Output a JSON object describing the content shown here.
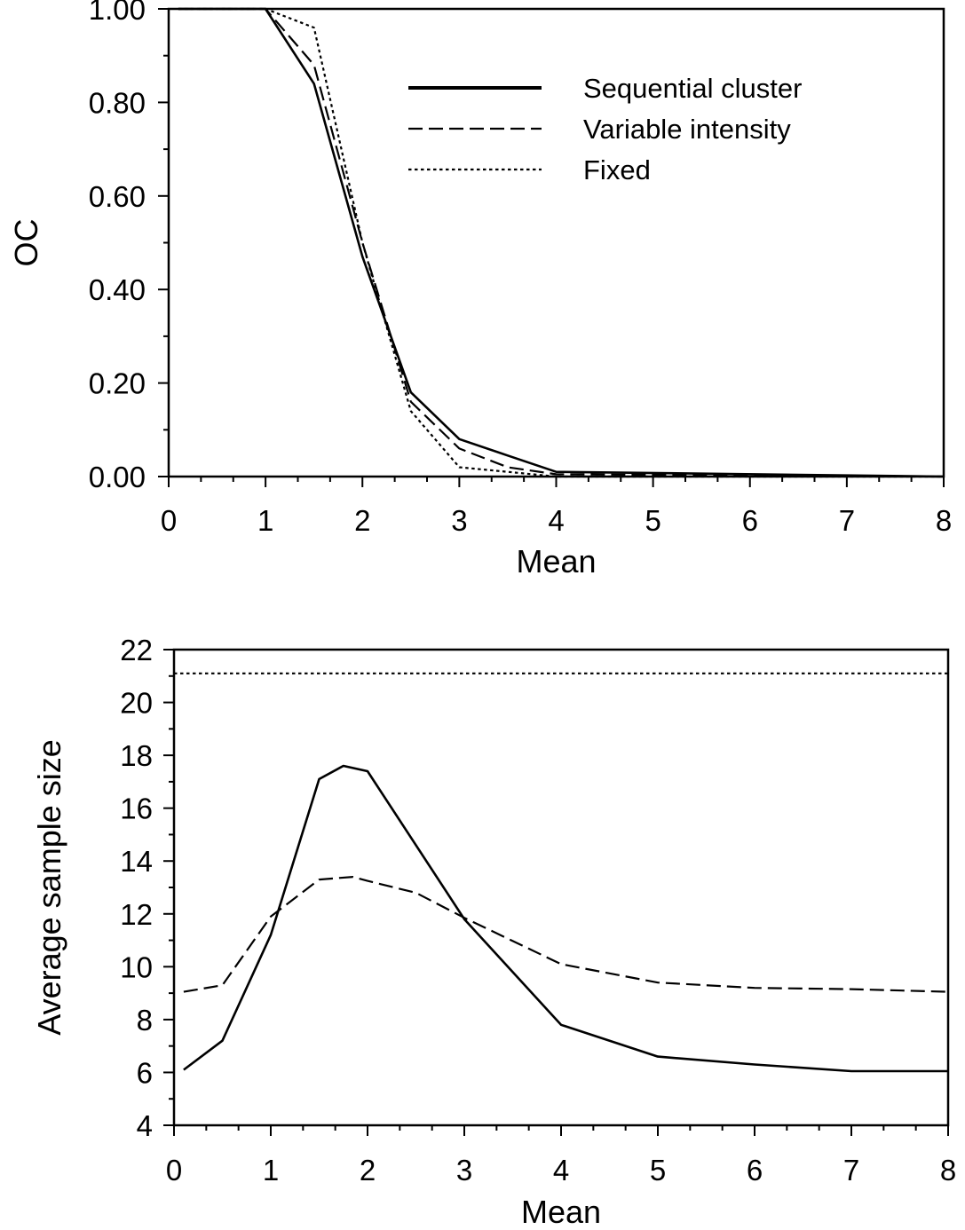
{
  "chart_data": [
    {
      "type": "line",
      "xlabel": "Mean",
      "ylabel": "OC",
      "xlim": [
        0,
        8
      ],
      "ylim": [
        0,
        1
      ],
      "x_ticks": [
        "0",
        "1",
        "2",
        "3",
        "4",
        "5",
        "6",
        "7",
        "8"
      ],
      "y_ticks": [
        "0.00",
        "0.20",
        "0.40",
        "0.60",
        "0.80",
        "1.00"
      ],
      "legend_position": "top-right",
      "series": [
        {
          "name": "Sequential cluster",
          "style": "solid",
          "points": [
            [
              0.1,
              1.0
            ],
            [
              1.0,
              1.0
            ],
            [
              1.5,
              0.84
            ],
            [
              2.0,
              0.47
            ],
            [
              2.5,
              0.18
            ],
            [
              3.0,
              0.08
            ],
            [
              3.5,
              0.045
            ],
            [
              4.0,
              0.01
            ],
            [
              8.0,
              0.0
            ]
          ]
        },
        {
          "name": "Variable intensity",
          "style": "dashed",
          "points": [
            [
              0.1,
              1.0
            ],
            [
              1.0,
              1.0
            ],
            [
              1.5,
              0.88
            ],
            [
              2.0,
              0.5
            ],
            [
              2.5,
              0.16
            ],
            [
              3.0,
              0.06
            ],
            [
              3.5,
              0.02
            ],
            [
              4.0,
              0.005
            ],
            [
              8.0,
              0.0
            ]
          ]
        },
        {
          "name": "Fixed",
          "style": "dotted",
          "points": [
            [
              0.1,
              1.0
            ],
            [
              1.0,
              1.0
            ],
            [
              1.5,
              0.96
            ],
            [
              2.0,
              0.5
            ],
            [
              2.5,
              0.14
            ],
            [
              3.0,
              0.02
            ],
            [
              3.5,
              0.01
            ],
            [
              4.0,
              0.0
            ],
            [
              8.0,
              0.0
            ]
          ]
        }
      ]
    },
    {
      "type": "line",
      "xlabel": "Mean",
      "ylabel": "Average sample size",
      "xlim": [
        0,
        8
      ],
      "ylim": [
        4,
        22
      ],
      "x_ticks": [
        "0",
        "1",
        "2",
        "3",
        "4",
        "5",
        "6",
        "7",
        "8"
      ],
      "y_ticks": [
        "4",
        "6",
        "8",
        "10",
        "12",
        "14",
        "16",
        "18",
        "20",
        "22"
      ],
      "series": [
        {
          "name": "Sequential cluster",
          "style": "solid",
          "points": [
            [
              0.1,
              6.1
            ],
            [
              0.5,
              7.2
            ],
            [
              1.0,
              11.2
            ],
            [
              1.5,
              17.1
            ],
            [
              1.75,
              17.6
            ],
            [
              2.0,
              17.4
            ],
            [
              3.0,
              11.8
            ],
            [
              4.0,
              7.8
            ],
            [
              5.0,
              6.6
            ],
            [
              6.0,
              6.3
            ],
            [
              7.0,
              6.05
            ],
            [
              8.0,
              6.05
            ]
          ]
        },
        {
          "name": "Variable intensity",
          "style": "dashed",
          "points": [
            [
              0.1,
              9.05
            ],
            [
              0.5,
              9.3
            ],
            [
              1.0,
              11.9
            ],
            [
              1.5,
              13.3
            ],
            [
              1.85,
              13.4
            ],
            [
              2.0,
              13.25
            ],
            [
              2.5,
              12.8
            ],
            [
              3.0,
              11.85
            ],
            [
              4.0,
              10.1
            ],
            [
              5.0,
              9.4
            ],
            [
              6.0,
              9.2
            ],
            [
              7.0,
              9.15
            ],
            [
              8.0,
              9.05
            ]
          ]
        },
        {
          "name": "Fixed",
          "style": "dotted",
          "points": [
            [
              0.0,
              21.1
            ],
            [
              8.0,
              21.1
            ]
          ]
        }
      ]
    }
  ]
}
